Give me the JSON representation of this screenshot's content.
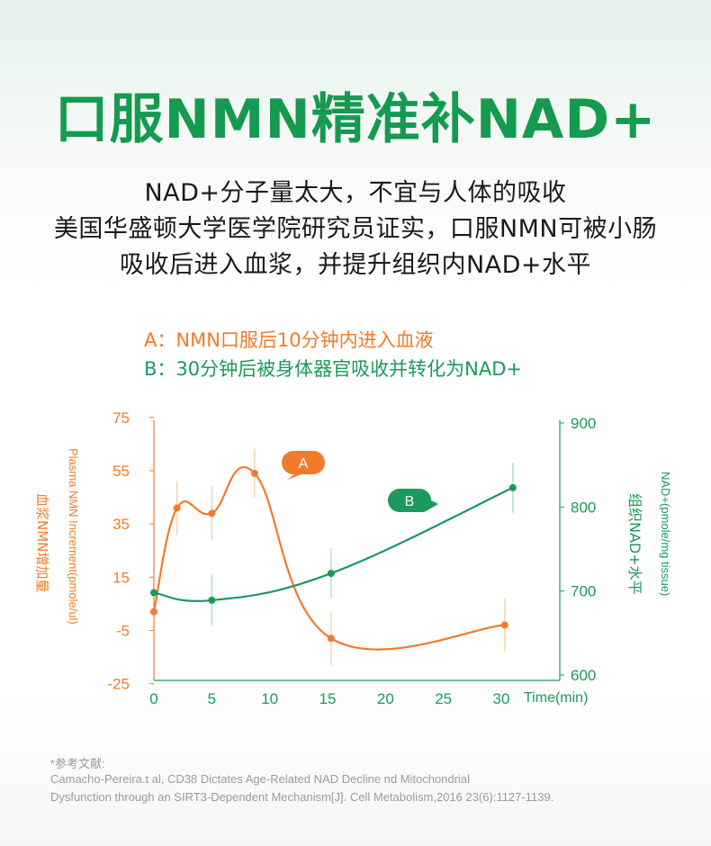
{
  "header": {
    "title": "口服NMN精准补NAD+",
    "lines": [
      "NAD+分子量太大，不宜与人体的吸收",
      "美国华盛顿大学医学院研究员证实，口服NMN可被小肠",
      "吸收后进入血浆，并提升组织内NAD+水平"
    ]
  },
  "notes": {
    "a": "A：NMN口服后10分钟内进入血液",
    "b": "B：30分钟后被身体器官吸收并转化为NAD+"
  },
  "colors": {
    "orange": "#f07b2a",
    "green": "#1a9a5c",
    "title": "#159a4f"
  },
  "chart_data": {
    "type": "line",
    "x_ticks": [
      "0",
      "5",
      "10",
      "15",
      "20",
      "25",
      "30"
    ],
    "xlabel": "Time(min)",
    "xlim": [
      0,
      34
    ],
    "y_left": {
      "ticks": [
        "75",
        "55",
        "35",
        "15",
        "-5",
        "-25"
      ],
      "range": [
        -25,
        75
      ],
      "label_en": "Plasma NMN Increment(pmole/ul)",
      "label_cn": "血浆NMN增加量"
    },
    "y_right": {
      "ticks": [
        "900",
        "800",
        "700",
        "600"
      ],
      "range": [
        600,
        900
      ],
      "label_en": "NAD+(pmole/mg tissue)",
      "label_cn": "组织NAD+水平"
    },
    "series": [
      {
        "axis": "left",
        "color": "#f07b2a",
        "points": [
          {
            "x": 0,
            "y": 2,
            "err": 0
          },
          {
            "x": 2,
            "y": 41,
            "err": 10
          },
          {
            "x": 5,
            "y": 39,
            "err": 10
          },
          {
            "x": 8.7,
            "y": 54,
            "err": 9
          },
          {
            "x": 15.3,
            "y": -8,
            "err": 10
          },
          {
            "x": 30.3,
            "y": -3,
            "err": 10
          }
        ],
        "callout": "A"
      },
      {
        "axis": "right",
        "color": "#1a9a5c",
        "points": [
          {
            "x": 0,
            "y": 698,
            "err": 0
          },
          {
            "x": 5,
            "y": 689,
            "err": 30
          },
          {
            "x": 15.3,
            "y": 721,
            "err": 30
          },
          {
            "x": 31,
            "y": 823,
            "err": 30
          }
        ],
        "callout": "B"
      }
    ]
  },
  "reference": {
    "label": "*参考文献:",
    "line1": "Camacho-Pereira.t al, CD38 Dictates Age-Related NAD Decline nd Mitochondrial",
    "line2": "Dysfunction through an SIRT3-Dependent Mechanism[J]. Cell Metabolism,2016 23(6):1127-1139."
  }
}
